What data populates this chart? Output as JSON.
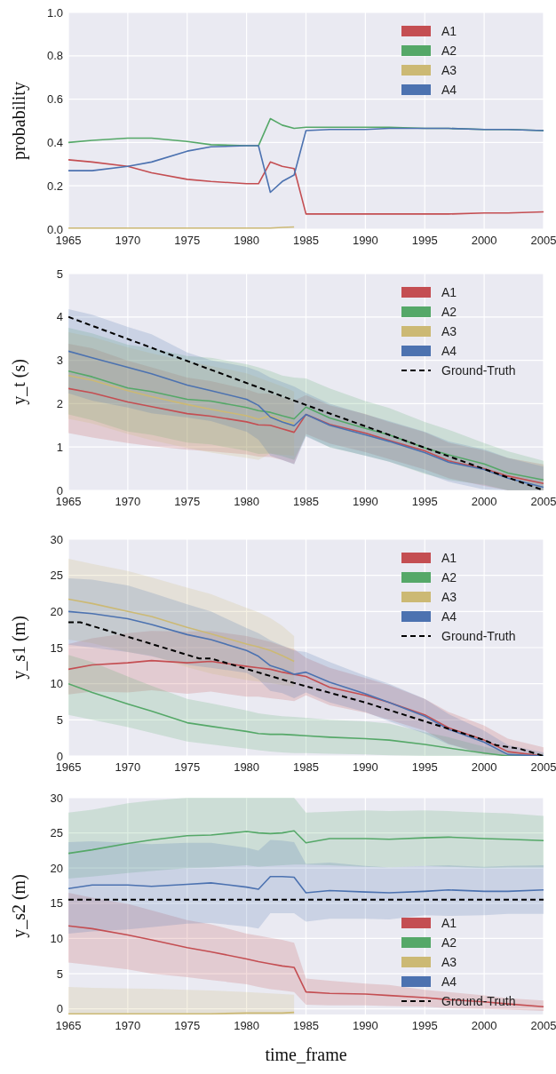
{
  "chart_data": [
    {
      "type": "line",
      "ylabel": "probability",
      "x": [
        1965,
        1967,
        1970,
        1972,
        1975,
        1977,
        1980,
        1981,
        1982,
        1983,
        1984,
        1985,
        1987,
        1990,
        1992,
        1995,
        1997,
        2000,
        2002,
        2005
      ],
      "xlim": [
        1965,
        2005
      ],
      "xticks": [
        1965,
        1970,
        1975,
        1980,
        1985,
        1990,
        1995,
        2000,
        2005
      ],
      "ylim": [
        0,
        1
      ],
      "yticks": [
        {
          "value": 0,
          "label": "0.0"
        },
        {
          "value": 0.2,
          "label": "0.2"
        },
        {
          "value": 0.4,
          "label": "0.4"
        },
        {
          "value": 0.6,
          "label": "0.6"
        },
        {
          "value": 0.8,
          "label": "0.8"
        },
        {
          "value": 1,
          "label": "1.0"
        }
      ],
      "grid": true,
      "legend": "top right",
      "series": [
        {
          "name": "A1",
          "color": "#c44e52",
          "values": [
            0.32,
            0.31,
            0.29,
            0.26,
            0.23,
            0.22,
            0.21,
            0.21,
            0.31,
            0.29,
            0.28,
            0.07,
            0.07,
            0.07,
            0.07,
            0.07,
            0.07,
            0.075,
            0.075,
            0.08
          ]
        },
        {
          "name": "A2",
          "color": "#55a868",
          "values": [
            0.4,
            0.41,
            0.42,
            0.42,
            0.405,
            0.39,
            0.385,
            0.385,
            0.51,
            0.48,
            0.465,
            0.47,
            0.47,
            0.47,
            0.47,
            0.465,
            0.465,
            0.46,
            0.46,
            0.455
          ]
        },
        {
          "name": "A3",
          "color": "#ccb974",
          "values": [
            0.005,
            0.005,
            0.005,
            0.005,
            0.005,
            0.005,
            0.005,
            0.005,
            0.005,
            0.008,
            0.01,
            null,
            null,
            null,
            null,
            null,
            null,
            null,
            null,
            null
          ]
        },
        {
          "name": "A4",
          "color": "#4c72b0",
          "values": [
            0.27,
            0.27,
            0.29,
            0.31,
            0.36,
            0.38,
            0.385,
            0.385,
            0.17,
            0.22,
            0.25,
            0.455,
            0.46,
            0.46,
            0.465,
            0.465,
            0.465,
            0.46,
            0.46,
            0.455
          ]
        }
      ]
    },
    {
      "type": "line",
      "ylabel": "y_t (s)",
      "x": [
        1965,
        1967,
        1970,
        1972,
        1975,
        1977,
        1980,
        1981,
        1982,
        1983,
        1984,
        1985,
        1987,
        1990,
        1992,
        1995,
        1997,
        2000,
        2002,
        2005
      ],
      "xlim": [
        1965,
        2005
      ],
      "xticks": [
        1965,
        1970,
        1975,
        1980,
        1985,
        1990,
        1995,
        2000,
        2005
      ],
      "ylim": [
        0,
        5
      ],
      "yticks": [
        0,
        1,
        2,
        3,
        4,
        5
      ],
      "grid": true,
      "legend": "top right",
      "series": [
        {
          "name": "A1",
          "color": "#c44e52",
          "values": [
            2.35,
            2.25,
            2.04,
            1.93,
            1.77,
            1.71,
            1.58,
            1.51,
            1.5,
            1.42,
            1.34,
            1.75,
            1.52,
            1.32,
            1.15,
            0.91,
            0.68,
            0.5,
            0.33,
            0.16
          ],
          "lower": [
            1.32,
            1.22,
            1.09,
            1.02,
            0.94,
            0.9,
            0.83,
            0.78,
            0.77,
            0.7,
            0.61,
            1.3,
            1.08,
            0.88,
            0.72,
            0.48,
            0.28,
            0.1,
            0,
            0
          ],
          "upper": [
            3.38,
            3.28,
            2.99,
            2.84,
            2.6,
            2.52,
            2.33,
            2.24,
            2.23,
            2.14,
            2.07,
            2.2,
            1.96,
            1.76,
            1.58,
            1.34,
            1.1,
            0.92,
            0.75,
            0.6
          ]
        },
        {
          "name": "A2",
          "color": "#55a868",
          "values": [
            2.75,
            2.62,
            2.36,
            2.28,
            2.1,
            2.06,
            1.91,
            1.84,
            1.8,
            1.72,
            1.65,
            1.92,
            1.67,
            1.43,
            1.28,
            0.98,
            0.82,
            0.61,
            0.4,
            0.24
          ],
          "lower": [
            1.75,
            1.62,
            1.36,
            1.28,
            1.1,
            1.06,
            0.91,
            0.84,
            0.85,
            0.79,
            0.7,
            1.26,
            0.99,
            0.8,
            0.66,
            0.38,
            0.24,
            0.13,
            0,
            0
          ],
          "upper": [
            3.75,
            3.62,
            3.36,
            3.28,
            3.1,
            3.06,
            2.91,
            2.84,
            2.75,
            2.65,
            2.6,
            2.58,
            2.35,
            2.06,
            1.9,
            1.58,
            1.4,
            1.09,
            0.9,
            0.68
          ]
        },
        {
          "name": "A3",
          "color": "#ccb974",
          "values": [
            2.65,
            2.54,
            2.3,
            2.16,
            1.98,
            1.87,
            1.72,
            1.64,
            1.72,
            1.61,
            1.54,
            null,
            null,
            null,
            null,
            null,
            null,
            null,
            null,
            null
          ],
          "lower": [
            1.65,
            1.54,
            1.3,
            1.16,
            0.98,
            0.87,
            0.75,
            0.7,
            0.85,
            0.82,
            0.8,
            null,
            null,
            null,
            null,
            null,
            null,
            null,
            null,
            null
          ],
          "upper": [
            3.65,
            3.54,
            3.3,
            3.16,
            2.98,
            2.87,
            2.7,
            2.6,
            2.5,
            2.4,
            2.28,
            null,
            null,
            null,
            null,
            null,
            null,
            null,
            null,
            null
          ]
        },
        {
          "name": "A4",
          "color": "#4c72b0",
          "values": [
            3.21,
            3.06,
            2.84,
            2.69,
            2.43,
            2.3,
            2.1,
            1.96,
            1.69,
            1.58,
            1.49,
            1.75,
            1.5,
            1.28,
            1.13,
            0.87,
            0.65,
            0.48,
            0.28,
            0.07
          ],
          "lower": [
            2.24,
            2.07,
            1.91,
            1.78,
            1.68,
            1.6,
            1.35,
            1.17,
            0.8,
            0.7,
            0.6,
            1.24,
            1.0,
            0.8,
            0.66,
            0.4,
            0.2,
            0.02,
            0,
            0
          ],
          "upper": [
            4.18,
            4.05,
            3.77,
            3.6,
            3.18,
            3.0,
            2.85,
            2.75,
            2.6,
            2.5,
            2.4,
            2.25,
            2.0,
            1.75,
            1.6,
            1.35,
            1.13,
            0.95,
            0.75,
            0.55
          ]
        },
        {
          "name": "Ground-Truth",
          "color": "#000000",
          "line_style": "dashed",
          "x": [
            1965,
            1985,
            2005
          ],
          "values": [
            4.0,
            1.97,
            0
          ]
        }
      ]
    },
    {
      "type": "line",
      "ylabel": "y_s1 (m)",
      "x": [
        1965,
        1967,
        1970,
        1972,
        1975,
        1977,
        1980,
        1981,
        1982,
        1983,
        1984,
        1985,
        1987,
        1990,
        1992,
        1995,
        1997,
        2000,
        2002,
        2005
      ],
      "xlim": [
        1965,
        2005
      ],
      "xticks": [
        1965,
        1970,
        1975,
        1980,
        1985,
        1990,
        1995,
        2000,
        2005
      ],
      "ylim": [
        0,
        30
      ],
      "yticks": [
        0,
        5,
        10,
        15,
        20,
        25,
        30
      ],
      "grid": true,
      "legend": "top right",
      "series": [
        {
          "name": "A1",
          "color": "#c44e52",
          "values": [
            12.0,
            12.6,
            12.9,
            13.2,
            12.9,
            13.1,
            12.4,
            12.2,
            12.0,
            11.6,
            11.3,
            11.0,
            9.5,
            8.4,
            7.4,
            5.7,
            3.9,
            2.2,
            0.6,
            0
          ],
          "lower": [
            8.5,
            8.9,
            8.8,
            9.1,
            8.6,
            8.9,
            8.2,
            8.2,
            8.0,
            7.8,
            7.6,
            8.4,
            7.0,
            6.0,
            5.0,
            3.5,
            1.7,
            0.2,
            0,
            0
          ],
          "upper": [
            15.5,
            16.3,
            17.0,
            17.3,
            17.2,
            17.3,
            16.6,
            16.2,
            15.8,
            15.2,
            14.8,
            13.6,
            12.2,
            10.8,
            9.8,
            7.9,
            6.1,
            4.2,
            2.4,
            1.2
          ]
        },
        {
          "name": "A2",
          "color": "#55a868",
          "values": [
            10.0,
            8.8,
            7.2,
            6.2,
            4.6,
            4.1,
            3.4,
            3.1,
            3.0,
            3.0,
            2.9,
            2.8,
            2.6,
            2.4,
            2.2,
            1.6,
            1.1,
            0.4,
            0,
            0
          ],
          "lower": [
            5.7,
            5.0,
            4.0,
            3.2,
            2.0,
            1.6,
            1.0,
            0.8,
            0.6,
            0.5,
            0.4,
            0.4,
            0.3,
            0.2,
            0.1,
            0,
            0,
            0,
            0,
            0
          ],
          "upper": [
            14.0,
            13.0,
            11.0,
            9.7,
            7.9,
            7.3,
            6.3,
            5.9,
            5.7,
            5.5,
            5.4,
            5.3,
            5.0,
            4.8,
            4.5,
            3.3,
            2.6,
            1.3,
            0.5,
            0.3
          ]
        },
        {
          "name": "A3",
          "color": "#ccb974",
          "values": [
            21.7,
            21.1,
            20.0,
            19.3,
            17.8,
            16.9,
            15.5,
            15.1,
            14.6,
            13.9,
            13.1,
            null,
            null,
            null,
            null,
            null,
            null,
            null,
            null,
            null
          ],
          "lower": [
            16.1,
            15.6,
            14.4,
            13.9,
            12.3,
            11.4,
            10.5,
            10.3,
            10.1,
            9.8,
            9.6,
            null,
            null,
            null,
            null,
            null,
            null,
            null,
            null,
            null
          ],
          "upper": [
            27.3,
            26.6,
            25.6,
            24.7,
            23.3,
            22.4,
            20.5,
            19.9,
            19.1,
            18.0,
            16.6,
            null,
            null,
            null,
            null,
            null,
            null,
            null,
            null,
            null
          ]
        },
        {
          "name": "A4",
          "color": "#4c72b0",
          "values": [
            20.0,
            19.7,
            19.0,
            18.2,
            16.8,
            16.1,
            14.6,
            13.8,
            12.5,
            12.0,
            11.3,
            11.6,
            10.2,
            8.6,
            7.4,
            5.5,
            3.7,
            1.9,
            0.2,
            0
          ],
          "lower": [
            15.4,
            15.0,
            14.4,
            13.8,
            12.6,
            12.2,
            11.5,
            10.6,
            9.0,
            8.7,
            8.0,
            8.8,
            7.4,
            6.1,
            4.8,
            3.1,
            1.6,
            0.3,
            0,
            0
          ],
          "upper": [
            24.6,
            24.4,
            23.6,
            22.6,
            21.0,
            20.0,
            17.7,
            17.0,
            16.0,
            15.3,
            14.6,
            14.4,
            13.0,
            11.1,
            10.0,
            7.9,
            5.8,
            3.5,
            1.5,
            0.5
          ]
        },
        {
          "name": "Ground-Truth",
          "color": "#000000",
          "line_style": "dashed",
          "x": [
            1965,
            1966,
            1976,
            1977,
            1984,
            1990,
            1995,
            2000,
            2001,
            2003,
            2005
          ],
          "values": [
            18.5,
            18.5,
            13.5,
            13.5,
            10.1,
            7.4,
            4.8,
            2.2,
            1.5,
            1.0,
            0
          ]
        }
      ]
    },
    {
      "type": "line",
      "ylabel": "y_s2 (m)",
      "xlabel": "time_frame",
      "x": [
        1965,
        1967,
        1970,
        1972,
        1975,
        1977,
        1980,
        1981,
        1982,
        1983,
        1984,
        1985,
        1987,
        1990,
        1992,
        1995,
        1997,
        2000,
        2002,
        2005
      ],
      "xlim": [
        1965,
        2005
      ],
      "xticks": [
        1965,
        1970,
        1975,
        1980,
        1985,
        1990,
        1995,
        2000,
        2005
      ],
      "ylim": [
        -0.8,
        30
      ],
      "yticks": [
        0,
        5,
        10,
        15,
        20,
        25,
        30
      ],
      "grid": true,
      "legend": "bottom right",
      "series": [
        {
          "name": "A1",
          "color": "#c44e52",
          "values": [
            11.8,
            11.4,
            10.5,
            9.8,
            8.7,
            8.1,
            7.1,
            6.7,
            6.4,
            6.1,
            5.9,
            2.4,
            2.2,
            2.1,
            1.9,
            1.6,
            1.3,
            1.0,
            0.7,
            0.3
          ],
          "lower": [
            6.6,
            6.2,
            5.6,
            5.0,
            4.5,
            4.1,
            3.5,
            3.1,
            2.8,
            2.6,
            2.4,
            0.6,
            0.5,
            0.5,
            0.4,
            0.3,
            0.1,
            0.0,
            -0.1,
            -0.3
          ],
          "upper": [
            16.5,
            15.8,
            14.9,
            14.0,
            12.6,
            12.0,
            10.7,
            10.4,
            10.1,
            9.8,
            9.4,
            4.3,
            4.0,
            3.6,
            3.4,
            2.7,
            2.4,
            1.9,
            1.5,
            1.2
          ]
        },
        {
          "name": "A2",
          "color": "#55a868",
          "values": [
            22.1,
            22.6,
            23.5,
            24.0,
            24.6,
            24.7,
            25.2,
            25.0,
            24.9,
            25.0,
            25.3,
            23.6,
            24.2,
            24.2,
            24.1,
            24.3,
            24.4,
            24.2,
            24.1,
            23.9
          ],
          "lower": [
            18.5,
            18.8,
            19.3,
            19.6,
            20.0,
            20.1,
            20.4,
            20.2,
            20.3,
            20.4,
            20.5,
            20.5,
            20.4,
            20.2,
            20.1,
            20.3,
            20.2,
            20.0,
            20.1,
            20.1
          ],
          "upper": [
            27.9,
            28.3,
            29.2,
            29.6,
            30,
            30,
            30,
            30,
            30,
            30,
            30,
            27.9,
            28.0,
            28.2,
            28.1,
            28.2,
            28.1,
            27.9,
            27.8,
            27.4
          ]
        },
        {
          "name": "A3",
          "color": "#ccb974",
          "values": [
            -0.7,
            -0.7,
            -0.7,
            -0.7,
            -0.7,
            -0.7,
            -0.6,
            -0.6,
            -0.6,
            -0.6,
            -0.5,
            null,
            null,
            null,
            null,
            null,
            null,
            null,
            null,
            null
          ],
          "lower": [
            -0.8,
            -0.8,
            -0.8,
            -0.8,
            -0.8,
            -0.8,
            -0.8,
            -0.8,
            -0.8,
            -0.8,
            -0.8,
            null,
            null,
            null,
            null,
            null,
            null,
            null,
            null,
            null
          ],
          "upper": [
            3.1,
            3.0,
            2.9,
            2.85,
            2.7,
            2.6,
            2.4,
            2.3,
            2.2,
            2.1,
            2.0,
            null,
            null,
            null,
            null,
            null,
            null,
            null,
            null,
            null
          ]
        },
        {
          "name": "A4",
          "color": "#4c72b0",
          "values": [
            17.1,
            17.6,
            17.6,
            17.4,
            17.7,
            17.9,
            17.3,
            17.0,
            18.8,
            18.8,
            18.7,
            16.5,
            16.8,
            16.6,
            16.5,
            16.7,
            16.9,
            16.7,
            16.7,
            16.9
          ],
          "lower": [
            10.7,
            11.0,
            11.3,
            11.6,
            12.1,
            12.2,
            11.7,
            11.4,
            13.6,
            13.6,
            13.6,
            12.4,
            12.8,
            12.8,
            12.7,
            13.3,
            13.2,
            13.3,
            13.5,
            13.5
          ],
          "upper": [
            23.7,
            23.8,
            23.6,
            23.4,
            23.6,
            23.6,
            22.9,
            22.5,
            24.0,
            23.9,
            23.7,
            20.6,
            20.8,
            20.3,
            20.1,
            20.3,
            20.4,
            20.2,
            20.3,
            20.4
          ]
        },
        {
          "name": "Ground-Truth",
          "color": "#000000",
          "line_style": "dashed",
          "x": [
            1965,
            2005
          ],
          "values": [
            15.5,
            15.5
          ]
        }
      ]
    }
  ]
}
